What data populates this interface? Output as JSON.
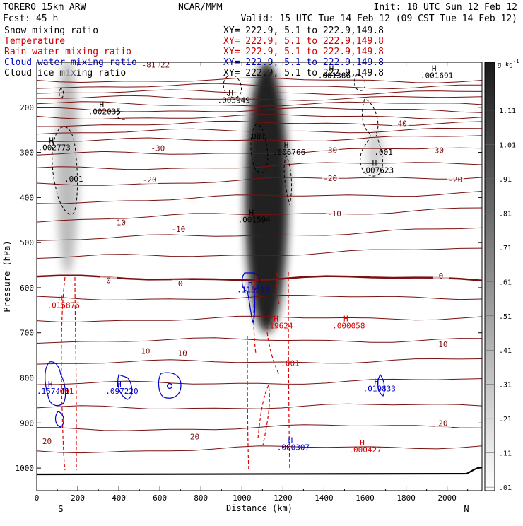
{
  "header": {
    "model": "TORERO  15km ARW",
    "center": "NCAR/MMM",
    "init": "Init: 18 UTC Sun 12 Feb 12",
    "fcst": "Fcst:   45 h",
    "valid": "Valid: 15 UTC Tue 14 Feb 12 (09 CST Tue 14 Feb 12)"
  },
  "legend": [
    {
      "label": "Snow mixing ratio",
      "xy": "",
      "color": "#000000"
    },
    {
      "label": "Temperature",
      "xy": "XY= 222.9,   5.1 to 222.9,149.8",
      "color": "#cc0000"
    },
    {
      "label": "Rain water mixing ratio",
      "xy": "XY= 222.9,   5.1 to 222.9,149.8",
      "color": "#cc0000"
    },
    {
      "label": "Cloud water mixing ratio",
      "xy": "XY= 222.9,   5.1 to 222.9,149.8",
      "color": "#0000cc"
    },
    {
      "label": "Cloud ice mixing ratio",
      "xy": "XY= 222.9,   5.1 to 222.9,149.8",
      "color": "#000000"
    }
  ],
  "legend_top_xy": "XY= 222.9,   5.1 to 222.9,149.8",
  "chart_data": {
    "type": "cross-section",
    "xlabel": "Distance (km)",
    "ylabel": "Pressure (hPa)",
    "xlim": [
      0,
      2170
    ],
    "ylim": [
      1050,
      100
    ],
    "x_ticks": [
      0,
      200,
      400,
      600,
      800,
      1000,
      1200,
      1400,
      1600,
      1800,
      2000
    ],
    "x_tick_labels": [
      "0",
      "200",
      "400",
      "600",
      "800",
      "1000",
      "1200",
      "1400",
      "1600",
      "1800",
      "2000"
    ],
    "y_ticks": [
      200,
      300,
      400,
      500,
      600,
      700,
      800,
      900,
      1000
    ],
    "y_tick_labels": [
      "200",
      "300",
      "400",
      "500",
      "600",
      "700",
      "800",
      "900",
      "1000"
    ],
    "end_labels": {
      "left": "S",
      "right": "N"
    },
    "colorbar": {
      "unit": "g kg",
      "unit_exp": "-1",
      "levels": [
        0.01,
        0.11,
        0.21,
        0.31,
        0.41,
        0.51,
        0.61,
        0.71,
        0.81,
        0.91,
        1.01,
        1.11
      ],
      "labels": [
        ".01",
        ".11",
        ".21",
        ".31",
        ".41",
        ".51",
        ".61",
        ".71",
        ".81",
        ".91",
        "1.01",
        "1.11"
      ]
    },
    "snow_regions": [
      {
        "x": 150,
        "p": 330,
        "rx": 55,
        "rp": 240,
        "max": 0.35
      },
      {
        "x": 1120,
        "p": 400,
        "rx": 105,
        "rp": 300,
        "max": 1.15
      },
      {
        "x": 1650,
        "p": 300,
        "rx": 40,
        "rp": 50,
        "max": 0.25
      }
    ],
    "isotherms": [
      {
        "p": [
          140,
          140
        ],
        "bold": false
      },
      {
        "p": [
          153,
          153
        ],
        "bold": false
      },
      {
        "p": [
          167,
          167
        ],
        "bold": false
      },
      {
        "p": [
          180,
          180
        ],
        "bold": false
      },
      {
        "p": [
          193,
          193
        ],
        "bold": false
      },
      {
        "p": [
          206,
          206
        ],
        "bold": false
      },
      {
        "p": [
          222,
          220
        ],
        "bold": false
      },
      {
        "p": [
          238,
          234
        ],
        "bold": false
      },
      {
        "p": [
          256,
          249
        ],
        "bold": false
      },
      {
        "p": [
          276,
          266
        ],
        "bold": false
      },
      {
        "p": [
          306,
          292
        ],
        "bold": false
      },
      {
        "p": [
          338,
          322
        ],
        "bold": false
      },
      {
        "p": [
          372,
          352
        ],
        "bold": false
      },
      {
        "p": [
          410,
          388
        ],
        "bold": false
      },
      {
        "p": [
          450,
          425
        ],
        "bold": false
      },
      {
        "p": [
          495,
          470
        ],
        "bold": false
      },
      {
        "p": [
          535,
          515
        ],
        "bold": false
      },
      {
        "p": [
          578,
          580
        ],
        "bold": true
      },
      {
        "p": [
          624,
          620
        ],
        "bold": false
      },
      {
        "p": [
          672,
          665
        ],
        "bold": false
      },
      {
        "p": [
          718,
          715
        ],
        "bold": false
      },
      {
        "p": [
          768,
          760
        ],
        "bold": false
      },
      {
        "p": [
          815,
          805
        ],
        "bold": false
      },
      {
        "p": [
          868,
          860
        ],
        "bold": false
      },
      {
        "p": [
          915,
          905
        ],
        "bold": false
      },
      {
        "p": [
          963,
          950
        ],
        "bold": false
      }
    ],
    "isotherm_labels": [
      {
        "text": "-81.22",
        "x": 580,
        "p": 110
      },
      {
        "text": "-40",
        "x": 1770,
        "p": 240
      },
      {
        "text": "-30",
        "x": 590,
        "p": 295
      },
      {
        "text": "-30",
        "x": 1430,
        "p": 300
      },
      {
        "text": "-30",
        "x": 1950,
        "p": 300
      },
      {
        "text": "-20",
        "x": 550,
        "p": 365
      },
      {
        "text": "-20",
        "x": 1430,
        "p": 362
      },
      {
        "text": "-20",
        "x": 2040,
        "p": 365
      },
      {
        "text": "-10",
        "x": 400,
        "p": 460
      },
      {
        "text": "-10",
        "x": 690,
        "p": 475
      },
      {
        "text": "-10",
        "x": 1450,
        "p": 440
      },
      {
        "text": "0",
        "x": 350,
        "p": 588
      },
      {
        "text": "0",
        "x": 700,
        "p": 595
      },
      {
        "text": "0",
        "x": 1970,
        "p": 578
      },
      {
        "text": "10",
        "x": 530,
        "p": 745
      },
      {
        "text": "10",
        "x": 710,
        "p": 750
      },
      {
        "text": "10",
        "x": 1980,
        "p": 730
      },
      {
        "text": "20",
        "x": 50,
        "p": 945
      },
      {
        "text": "20",
        "x": 770,
        "p": 935
      },
      {
        "text": "20",
        "x": 1980,
        "p": 905
      }
    ],
    "ice_labels": [
      {
        "h": "H",
        "text": ".002035",
        "x": 330,
        "p": 215
      },
      {
        "h": "H",
        "text": ".003949",
        "x": 960,
        "p": 190
      },
      {
        "h": "H",
        "text": ".001386",
        "x": 1450,
        "p": 135
      },
      {
        "h": "H",
        "text": ".001691",
        "x": 1950,
        "p": 135
      },
      {
        "h": "H",
        "text": ".002773",
        "x": 85,
        "p": 295
      },
      {
        "h": "H",
        "text": ".006766",
        "x": 1230,
        "p": 305
      },
      {
        "h": "H",
        "text": ".007623",
        "x": 1660,
        "p": 345
      },
      {
        "h": "H",
        "text": ".001594",
        "x": 1060,
        "p": 455
      },
      {
        "h": "",
        "text": ".001",
        "x": 1070,
        "p": 270
      },
      {
        "h": "",
        "text": ".001",
        "x": 180,
        "p": 365
      },
      {
        "h": "",
        "text": ".001",
        "x": 1690,
        "p": 305
      }
    ],
    "rain_labels": [
      {
        "h": "H",
        "text": ".015876",
        "x": 130,
        "p": 645
      },
      {
        "h": "H",
        "text": ".19624",
        "x": 1180,
        "p": 690
      },
      {
        "h": "H",
        "text": ".000058",
        "x": 1520,
        "p": 690
      },
      {
        "h": "H",
        "text": ".000427",
        "x": 1600,
        "p": 965
      },
      {
        "h": "",
        "text": ".001",
        "x": 1235,
        "p": 773
      },
      {
        "h": "",
        "text": ".001",
        "x": 135,
        "p": 835
      }
    ],
    "cloud_labels": [
      {
        "h": "H",
        "text": ".157441",
        "x": 80,
        "p": 835
      },
      {
        "h": "H",
        "text": ".097220",
        "x": 415,
        "p": 835
      },
      {
        "h": "H",
        "text": ".113336",
        "x": 1055,
        "p": 610
      },
      {
        "h": "H",
        "text": ".019833",
        "x": 1670,
        "p": 830
      },
      {
        "h": "H",
        "text": ".000307",
        "x": 1250,
        "p": 960
      }
    ]
  }
}
